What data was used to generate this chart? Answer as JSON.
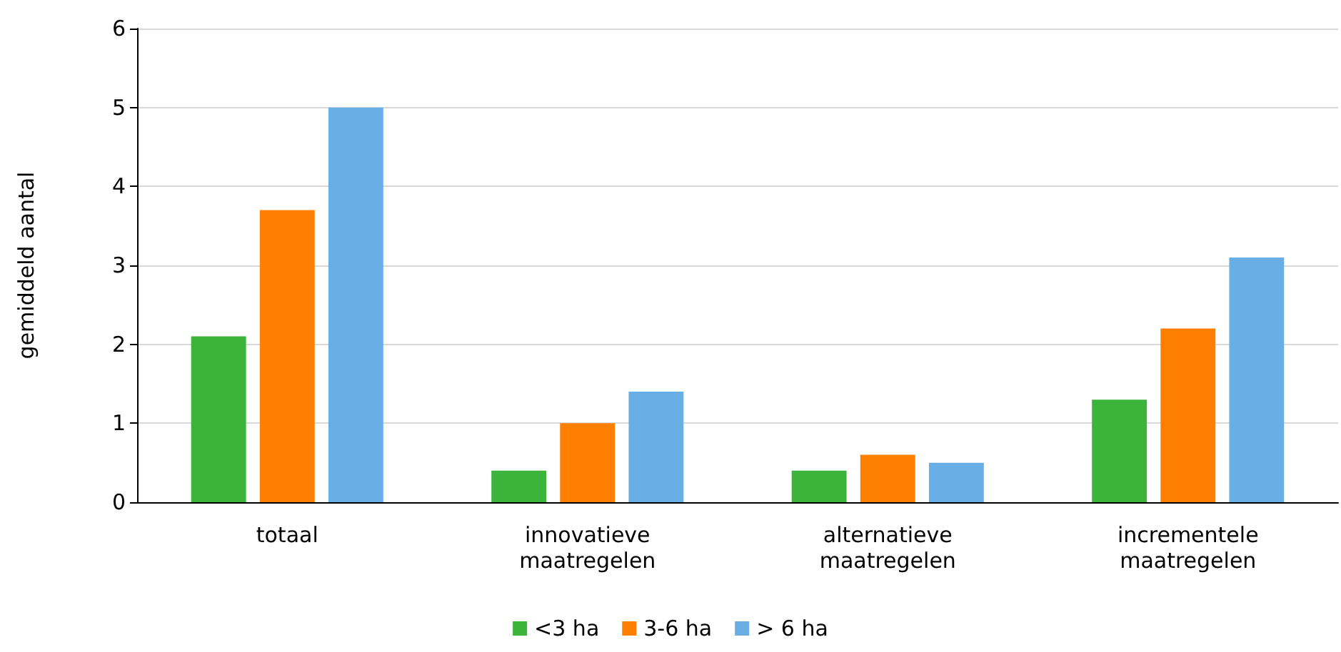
{
  "chart_data": {
    "type": "bar",
    "ylabel": "gemiddeld aantal",
    "categories": [
      "totaal",
      "innovatieve\nmaatregelen",
      "alternatieve\nmaatregelen",
      "incrementele\nmaatregelen"
    ],
    "series": [
      {
        "name": "<3 ha",
        "color": "#3cb43c",
        "values": [
          2.1,
          0.4,
          0.4,
          1.3
        ]
      },
      {
        "name": "3-6 ha",
        "color": "#ff7f00",
        "values": [
          3.7,
          1.0,
          0.6,
          2.2
        ]
      },
      {
        "name": "> 6 ha",
        "color": "#6aaee6",
        "values": [
          5.0,
          1.4,
          0.5,
          3.1
        ]
      }
    ],
    "ylim": [
      0,
      6
    ],
    "yticks": [
      0,
      1,
      2,
      3,
      4,
      5,
      6
    ],
    "grid": "y",
    "legend": "bottom"
  }
}
